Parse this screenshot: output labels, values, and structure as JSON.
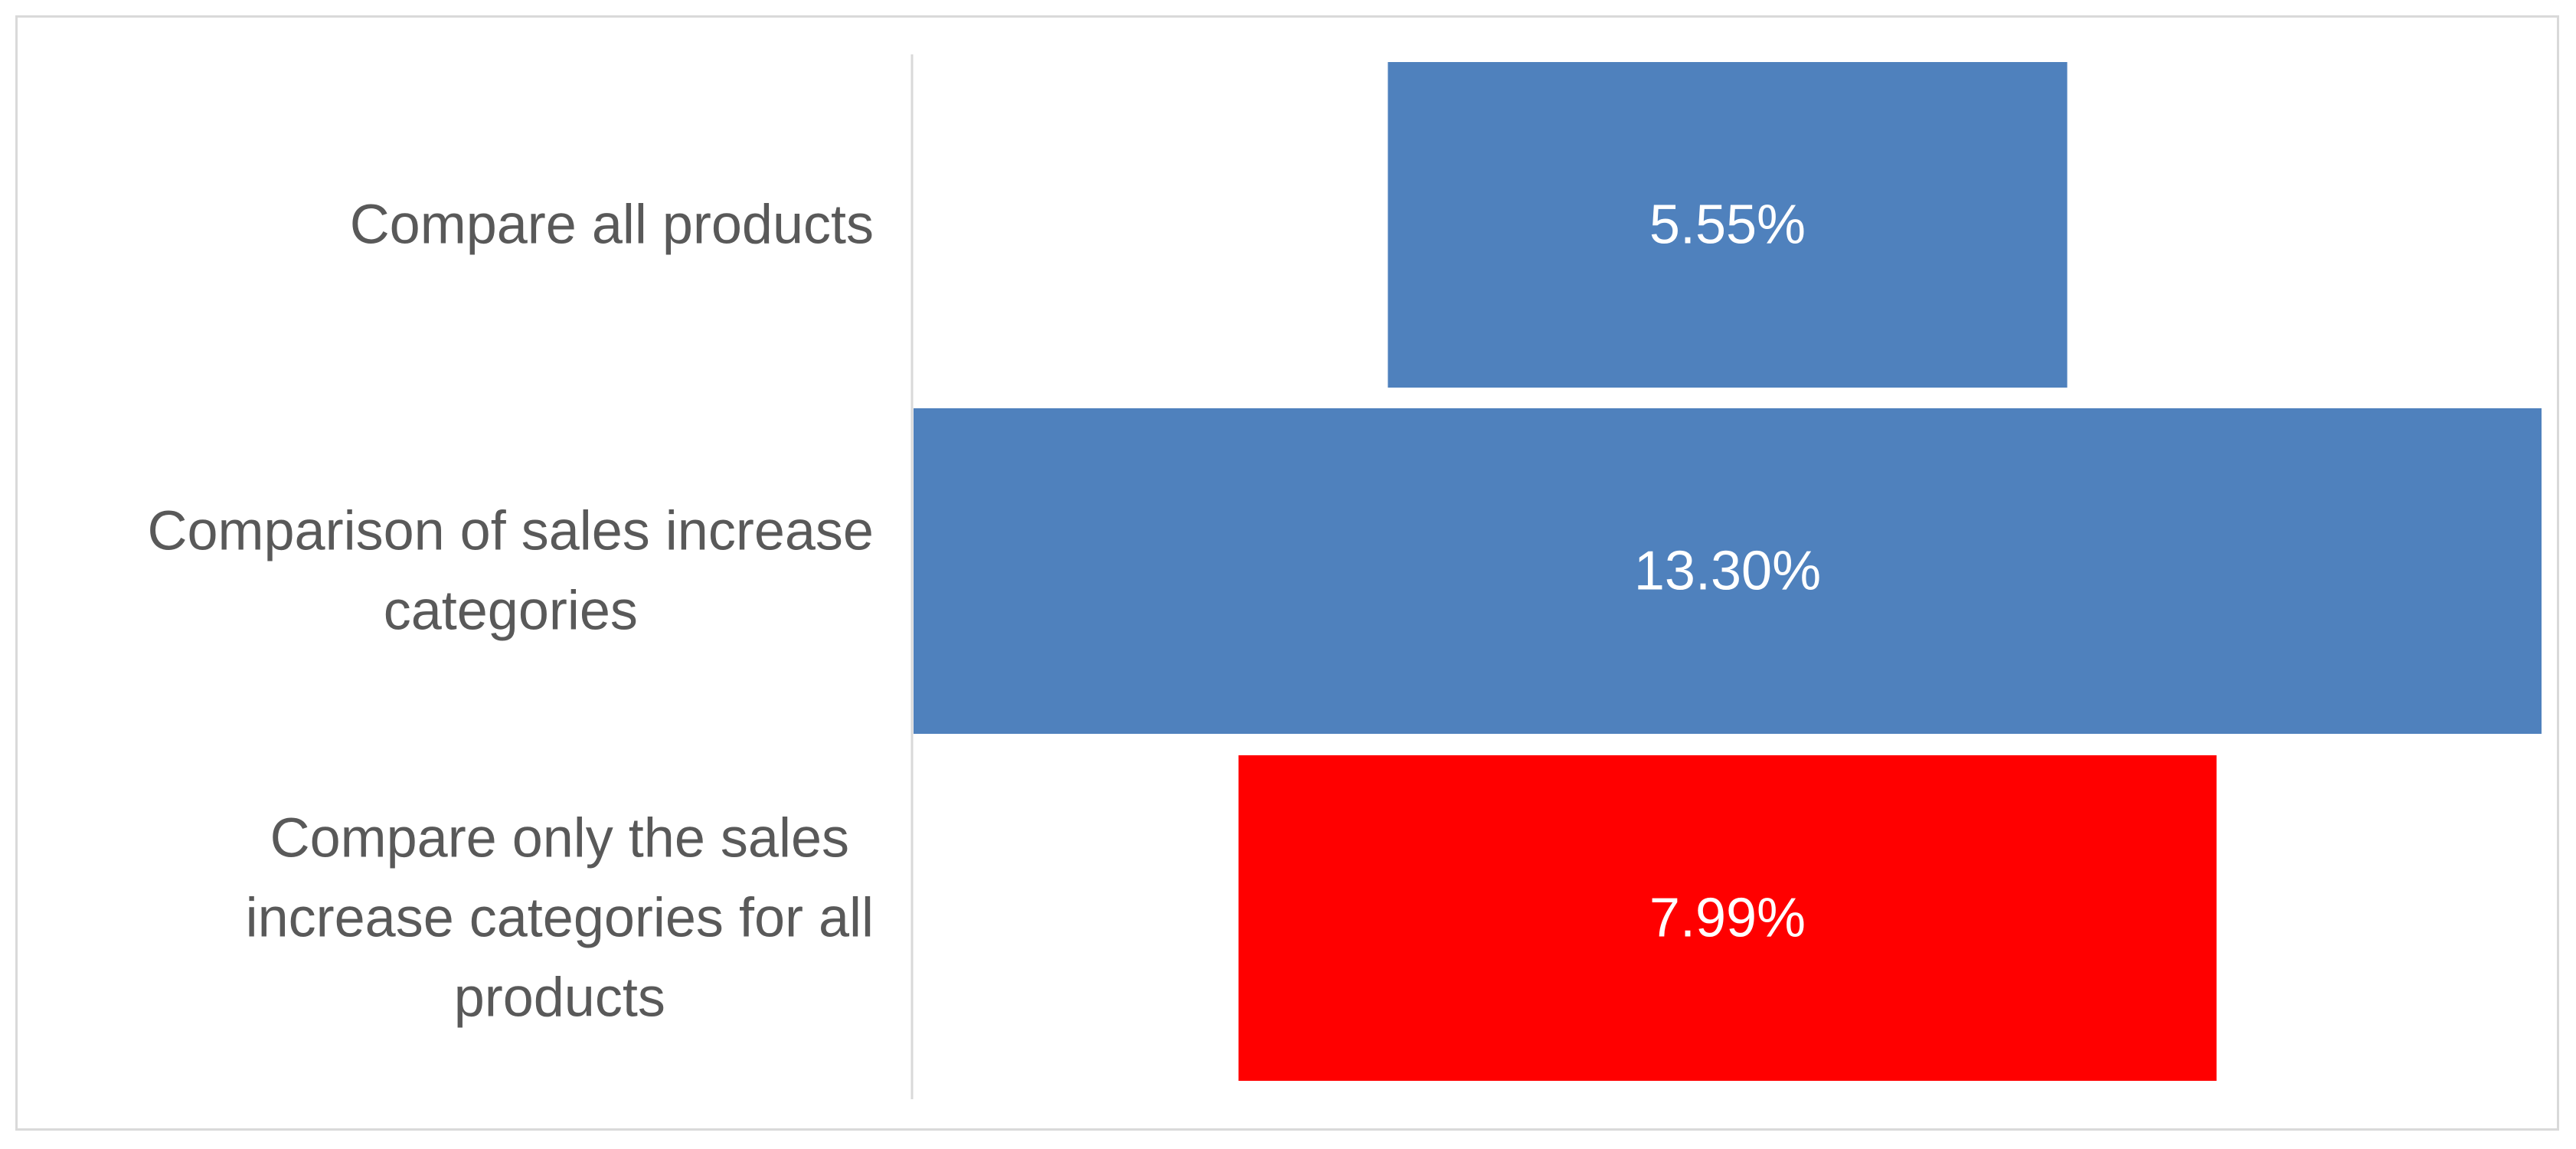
{
  "chart_data": {
    "type": "bar",
    "orientation": "horizontal",
    "style": "funnel",
    "categories": [
      [
        "Compare all products"
      ],
      [
        "Comparison of sales increase",
        "categories"
      ],
      [
        "Compare only the sales",
        "increase categories for all",
        "products"
      ]
    ],
    "values": [
      5.55,
      13.3,
      7.99
    ],
    "value_labels": [
      "5.55%",
      "13.30%",
      "7.99%"
    ],
    "colors": [
      "#4f81bd",
      "#4f81bd",
      "#ff0000"
    ],
    "title": "",
    "xlabel": "",
    "ylabel": "",
    "legend": "none",
    "grid": false
  }
}
